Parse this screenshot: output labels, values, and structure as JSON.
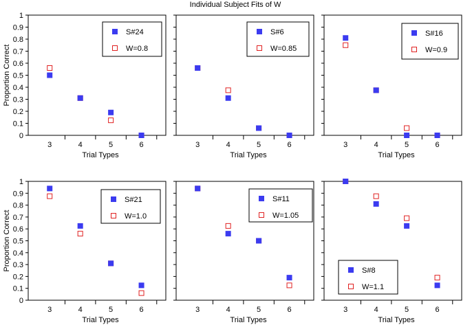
{
  "figure": {
    "title": "Individual Subject Fits of W"
  },
  "colors": {
    "observed": "#3b3bf0",
    "fit": "#e02020"
  },
  "chart_data": [
    {
      "type": "scatter",
      "categories": [
        "3",
        "4",
        "5",
        "6"
      ],
      "ylim": [
        0,
        1
      ],
      "yticks": [
        "0",
        "0.1",
        "0.2",
        "0.3",
        "0.4",
        "0.5",
        "0.6",
        "0.7",
        "0.8",
        "0.9",
        "1"
      ],
      "ylabel": "Proportion Correct",
      "xlabel": "Trial Types",
      "legend_position": "top-right",
      "series": [
        {
          "name": "S#24",
          "marker": "filled-square",
          "values": [
            0.5,
            0.31,
            0.19,
            0.0
          ]
        },
        {
          "name": "W=0.8",
          "marker": "open-square",
          "values": [
            0.56,
            0.31,
            0.125,
            0.0
          ]
        }
      ]
    },
    {
      "type": "scatter",
      "categories": [
        "3",
        "4",
        "5",
        "6"
      ],
      "ylim": [
        0,
        1
      ],
      "yticks": [
        "0",
        "0.1",
        "0.2",
        "0.3",
        "0.4",
        "0.5",
        "0.6",
        "0.7",
        "0.8",
        "0.9",
        "1"
      ],
      "ylabel": "",
      "xlabel": "Trial Types",
      "legend_position": "top-right",
      "series": [
        {
          "name": "S#6",
          "marker": "filled-square",
          "values": [
            0.56,
            0.31,
            0.06,
            0.0
          ]
        },
        {
          "name": "W=0.85",
          "marker": "open-square",
          "values": [
            0.56,
            0.375,
            0.06,
            0.0
          ]
        }
      ]
    },
    {
      "type": "scatter",
      "categories": [
        "3",
        "4",
        "5",
        "6"
      ],
      "ylim": [
        0,
        1
      ],
      "yticks": [
        "0",
        "0.1",
        "0.2",
        "0.3",
        "0.4",
        "0.5",
        "0.6",
        "0.7",
        "0.8",
        "0.9",
        "1"
      ],
      "ylabel": "",
      "xlabel": "Trial Types",
      "legend_position": "top-right",
      "series": [
        {
          "name": "S#16",
          "marker": "filled-square",
          "values": [
            0.81,
            0.375,
            0.0,
            0.0
          ]
        },
        {
          "name": "W=0.9",
          "marker": "open-square",
          "values": [
            0.75,
            0.375,
            0.06,
            0.0
          ]
        }
      ]
    },
    {
      "type": "scatter",
      "categories": [
        "3",
        "4",
        "5",
        "6"
      ],
      "ylim": [
        0,
        1
      ],
      "yticks": [
        "0",
        "0.1",
        "0.2",
        "0.3",
        "0.4",
        "0.5",
        "0.6",
        "0.7",
        "0.8",
        "0.9",
        "1"
      ],
      "ylabel": "Proportion Correct",
      "xlabel": "Trial Types",
      "legend_position": "top-right",
      "series": [
        {
          "name": "S#21",
          "marker": "filled-square",
          "values": [
            0.94,
            0.625,
            0.31,
            0.125
          ]
        },
        {
          "name": "W=1.0",
          "marker": "open-square",
          "values": [
            0.875,
            0.56,
            0.31,
            0.06
          ]
        }
      ]
    },
    {
      "type": "scatter",
      "categories": [
        "3",
        "4",
        "5",
        "6"
      ],
      "ylim": [
        0,
        1
      ],
      "yticks": [
        "0",
        "0.1",
        "0.2",
        "0.3",
        "0.4",
        "0.5",
        "0.6",
        "0.7",
        "0.8",
        "0.9",
        "1"
      ],
      "ylabel": "",
      "xlabel": "Trial Types",
      "legend_position": "top-right",
      "series": [
        {
          "name": "S#11",
          "marker": "filled-square",
          "values": [
            0.94,
            0.56,
            0.5,
            0.19
          ]
        },
        {
          "name": "W=1.05",
          "marker": "open-square",
          "values": [
            0.94,
            0.625,
            0.5,
            0.125
          ]
        }
      ]
    },
    {
      "type": "scatter",
      "categories": [
        "3",
        "4",
        "5",
        "6"
      ],
      "ylim": [
        0,
        1
      ],
      "yticks": [
        "0",
        "0.1",
        "0.2",
        "0.3",
        "0.4",
        "0.5",
        "0.6",
        "0.7",
        "0.8",
        "0.9",
        "1"
      ],
      "ylabel": "",
      "xlabel": "Trial Types",
      "legend_position": "bottom-left",
      "series": [
        {
          "name": "S#8",
          "marker": "filled-square",
          "values": [
            1.0,
            0.81,
            0.625,
            0.125
          ]
        },
        {
          "name": "W=1.1",
          "marker": "open-square",
          "values": [
            1.0,
            0.875,
            0.69,
            0.19
          ]
        }
      ]
    }
  ]
}
